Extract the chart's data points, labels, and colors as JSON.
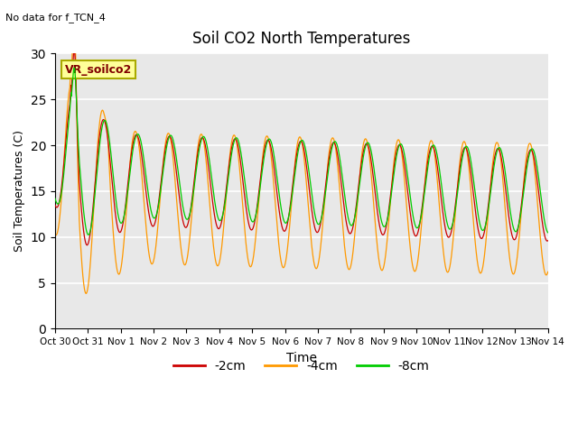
{
  "title": "Soil CO2 North Temperatures",
  "subtitle": "No data for f_TCN_4",
  "xlabel": "Time",
  "ylabel": "Soil Temperatures (C)",
  "ylim": [
    0,
    30
  ],
  "yticks": [
    0,
    5,
    10,
    15,
    20,
    25,
    30
  ],
  "xtick_labels": [
    "Oct 30",
    "Oct 31",
    "Nov 1",
    "Nov 2",
    "Nov 3",
    "Nov 4",
    "Nov 5",
    "Nov 6",
    "Nov 7",
    "Nov 8",
    "Nov 9",
    "Nov 10",
    "Nov 11",
    "Nov 12",
    "Nov 13",
    "Nov 14"
  ],
  "colors": {
    "2cm": "#cc0000",
    "4cm": "#ff9900",
    "8cm": "#00cc00"
  },
  "legend_labels": [
    "-2cm",
    "-4cm",
    "-8cm"
  ],
  "vr_box_color": "#ffff99",
  "vr_box_text": "VR_soilco2",
  "background_color": "#e8e8e8",
  "outer_background": "#ffffff",
  "grid_color": "#ffffff",
  "annotation_color": "#800000"
}
